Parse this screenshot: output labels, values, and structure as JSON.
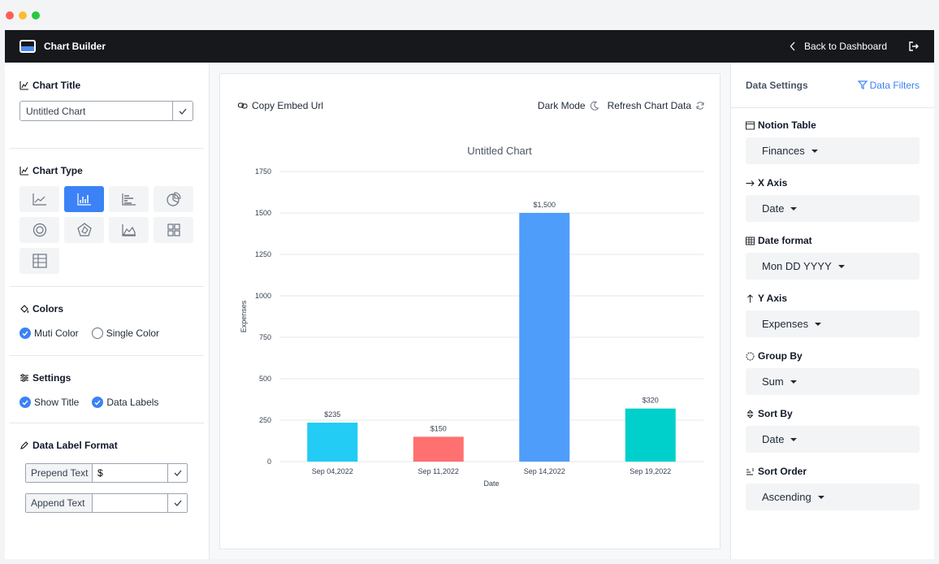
{
  "header": {
    "title": "Chart Builder",
    "back_label": "Back to Dashboard"
  },
  "left": {
    "chart_title_heading": "Chart Title",
    "chart_title_value": "Untitled Chart",
    "chart_type_heading": "Chart Type",
    "chart_types": [
      "line",
      "bar",
      "horizontal-bar",
      "pie",
      "doughnut",
      "radar",
      "area",
      "grid",
      "table"
    ],
    "active_chart_type": "bar",
    "colors_heading": "Colors",
    "color_options": [
      {
        "label": "Muti Color",
        "checked": true
      },
      {
        "label": "Single Color",
        "checked": false
      }
    ],
    "settings_heading": "Settings",
    "settings_options": [
      {
        "label": "Show Title",
        "checked": true
      },
      {
        "label": "Data Labels",
        "checked": true
      }
    ],
    "format_heading": "Data Label Format",
    "prepend_label": "Prepend Text",
    "prepend_value": "$",
    "append_label": "Append Text",
    "append_value": ""
  },
  "toolbar": {
    "copy_embed": "Copy Embed Url",
    "dark_mode": "Dark Mode",
    "refresh": "Refresh Chart Data"
  },
  "chart_data": {
    "type": "bar",
    "title": "Untitled Chart",
    "xlabel": "Date",
    "ylabel": "Expenses",
    "categories": [
      "Sep 04,2022",
      "Sep 11,2022",
      "Sep 14,2022",
      "Sep 19,2022"
    ],
    "values": [
      235,
      150,
      1500,
      320
    ],
    "data_labels": [
      "$235",
      "$150",
      "$1,500",
      "$320"
    ],
    "colors": [
      "#22ccf5",
      "#ff7070",
      "#4f9dfb",
      "#00d0cc"
    ],
    "ylim": [
      0,
      1750
    ],
    "yticks": [
      0,
      250,
      500,
      750,
      1000,
      1250,
      1500,
      1750
    ],
    "grid": true
  },
  "right": {
    "heading": "Data Settings",
    "filters_label": "Data Filters",
    "fields": [
      {
        "label": "Notion Table",
        "value": "Finances",
        "icon": "table-icon"
      },
      {
        "label": "X Axis",
        "value": "Date",
        "icon": "arrow-right-icon"
      },
      {
        "label": "Date format",
        "value": "Mon DD YYYY",
        "icon": "calendar-icon"
      },
      {
        "label": "Y Axis",
        "value": "Expenses",
        "icon": "arrow-up-icon"
      },
      {
        "label": "Group By",
        "value": "Sum",
        "icon": "group-icon"
      },
      {
        "label": "Sort By",
        "value": "Date",
        "icon": "sort-icon"
      },
      {
        "label": "Sort Order",
        "value": "Ascending",
        "icon": "sort-order-icon"
      }
    ]
  }
}
